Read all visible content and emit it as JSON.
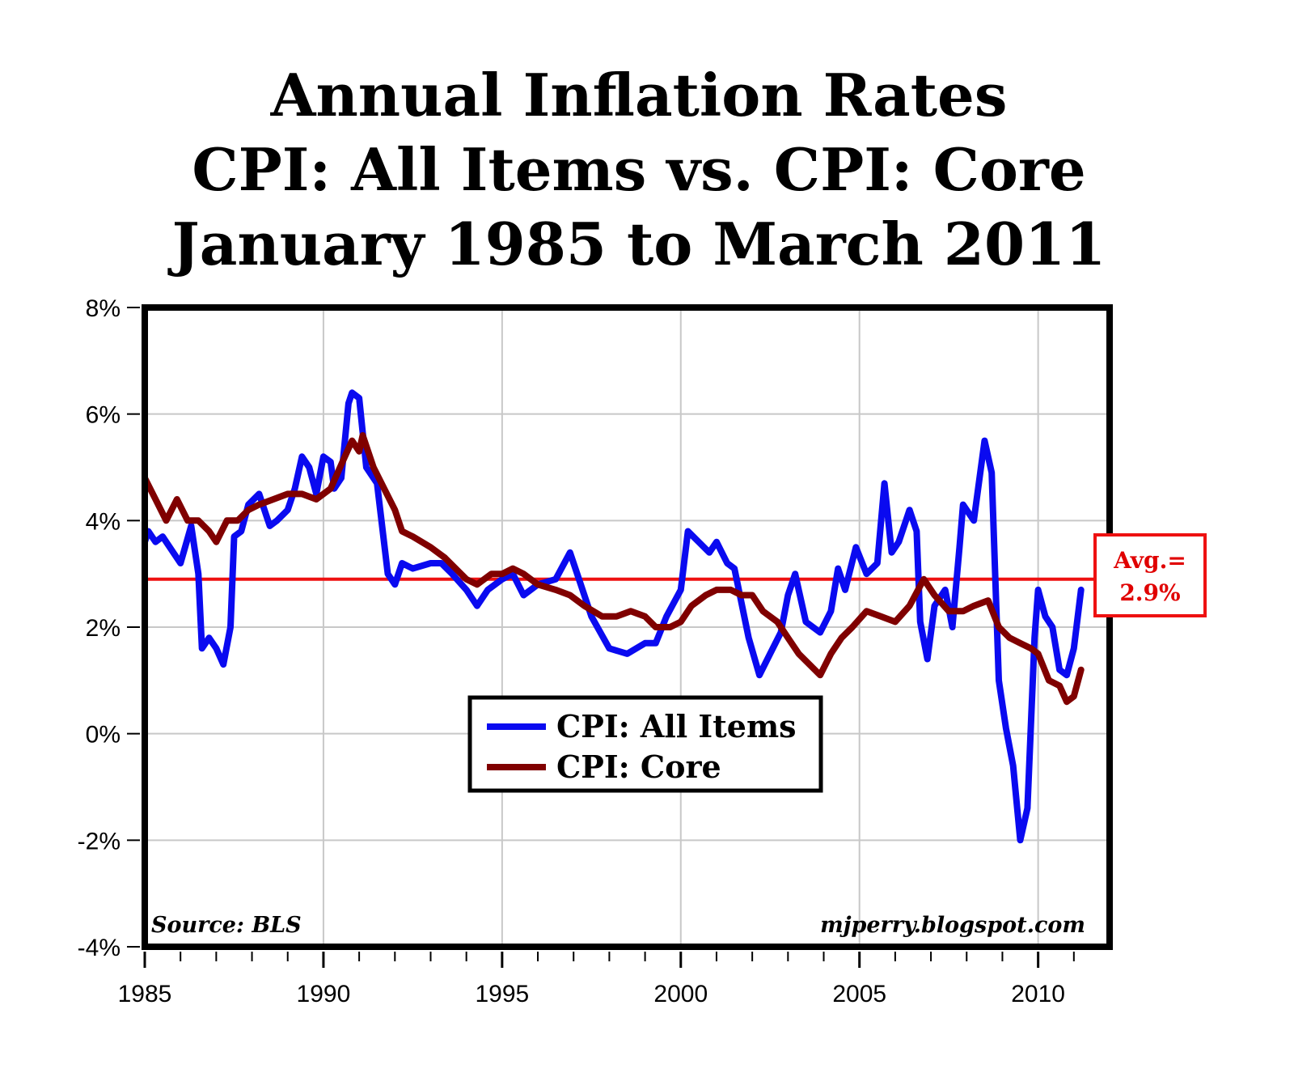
{
  "chart_data": {
    "type": "line",
    "title": [
      "Annual Inflation Rates",
      "CPI: All Items vs. CPI: Core",
      "January 1985 to March 2011"
    ],
    "xlim": [
      1985,
      2012
    ],
    "ylim": [
      -4,
      8
    ],
    "x_ticks": [
      1985,
      1990,
      1995,
      2000,
      2005,
      2010
    ],
    "x_tick_labels": [
      "1985",
      "1990",
      "1995",
      "2000",
      "2005",
      "2010"
    ],
    "y_ticks": [
      -4,
      -2,
      0,
      2,
      4,
      6,
      8
    ],
    "y_tick_labels": [
      "-4%",
      "-2%",
      "0%",
      "2%",
      "4%",
      "6%",
      "8%"
    ],
    "grid": true,
    "legend_placement": "center",
    "average": {
      "value": 2.9,
      "label_line1": "Avg.=",
      "label_line2": "2.9%",
      "color": "#ee1111"
    },
    "source_note": "Source: BLS",
    "credit": "mjperry.blogspot.com",
    "series": [
      {
        "name": "CPI: All Items",
        "color": "#0a0af0",
        "x": [
          1985.0,
          1985.1,
          1985.3,
          1985.5,
          1985.8,
          1986.0,
          1986.3,
          1986.5,
          1986.6,
          1986.8,
          1987.0,
          1987.2,
          1987.4,
          1987.5,
          1987.7,
          1987.9,
          1988.2,
          1988.4,
          1988.5,
          1988.7,
          1989.0,
          1989.2,
          1989.4,
          1989.6,
          1989.8,
          1990.0,
          1990.2,
          1990.3,
          1990.5,
          1990.7,
          1990.8,
          1991.0,
          1991.2,
          1991.5,
          1991.8,
          1992.0,
          1992.2,
          1992.5,
          1993.0,
          1993.3,
          1993.6,
          1994.0,
          1994.3,
          1994.6,
          1995.0,
          1995.3,
          1995.6,
          1996.0,
          1996.5,
          1996.9,
          1997.2,
          1997.5,
          1998.0,
          1998.5,
          1999.0,
          1999.3,
          1999.6,
          2000.0,
          2000.2,
          2000.5,
          2000.8,
          2001.0,
          2001.3,
          2001.5,
          2001.9,
          2002.2,
          2002.5,
          2002.8,
          2003.0,
          2003.2,
          2003.5,
          2003.9,
          2004.2,
          2004.4,
          2004.6,
          2004.9,
          2005.2,
          2005.5,
          2005.7,
          2005.9,
          2006.1,
          2006.4,
          2006.6,
          2006.7,
          2006.9,
          2007.1,
          2007.4,
          2007.6,
          2007.8,
          2007.9,
          2008.2,
          2008.5,
          2008.7,
          2008.9,
          2009.1,
          2009.3,
          2009.5,
          2009.7,
          2009.9,
          2010.0,
          2010.2,
          2010.4,
          2010.6,
          2010.8,
          2011.0,
          2011.2
        ],
        "values": [
          3.6,
          3.8,
          3.6,
          3.7,
          3.4,
          3.2,
          3.9,
          3.0,
          1.6,
          1.8,
          1.6,
          1.3,
          2.0,
          3.7,
          3.8,
          4.3,
          4.5,
          4.1,
          3.9,
          4.0,
          4.2,
          4.6,
          5.2,
          5.0,
          4.5,
          5.2,
          5.1,
          4.6,
          4.8,
          6.2,
          6.4,
          6.3,
          5.0,
          4.7,
          3.0,
          2.8,
          3.2,
          3.1,
          3.2,
          3.2,
          3.0,
          2.7,
          2.4,
          2.7,
          2.9,
          3.0,
          2.6,
          2.8,
          2.9,
          3.4,
          2.8,
          2.2,
          1.6,
          1.5,
          1.7,
          1.7,
          2.2,
          2.7,
          3.8,
          3.6,
          3.4,
          3.6,
          3.2,
          3.1,
          1.8,
          1.1,
          1.5,
          1.9,
          2.6,
          3.0,
          2.1,
          1.9,
          2.3,
          3.1,
          2.7,
          3.5,
          3.0,
          3.2,
          4.7,
          3.4,
          3.6,
          4.2,
          3.8,
          2.1,
          1.4,
          2.4,
          2.7,
          2.0,
          3.5,
          4.3,
          4.0,
          5.5,
          4.9,
          1.0,
          0.1,
          -0.6,
          -2.0,
          -1.4,
          1.8,
          2.7,
          2.2,
          2.0,
          1.2,
          1.1,
          1.6,
          2.7
        ]
      },
      {
        "name": "CPI: Core",
        "color": "#800000",
        "x": [
          1985.0,
          1985.3,
          1985.6,
          1985.9,
          1986.2,
          1986.5,
          1986.8,
          1987.0,
          1987.3,
          1987.6,
          1987.9,
          1988.2,
          1988.6,
          1989.0,
          1989.4,
          1989.8,
          1990.2,
          1990.6,
          1990.8,
          1991.0,
          1991.1,
          1991.4,
          1991.7,
          1992.0,
          1992.2,
          1992.5,
          1993.0,
          1993.4,
          1993.7,
          1994.0,
          1994.3,
          1994.7,
          1995.0,
          1995.3,
          1995.6,
          1996.0,
          1996.5,
          1996.9,
          1997.3,
          1997.8,
          1998.2,
          1998.6,
          1999.0,
          1999.3,
          1999.7,
          2000.0,
          2000.3,
          2000.7,
          2001.0,
          2001.4,
          2001.7,
          2002.0,
          2002.3,
          2002.7,
          2003.0,
          2003.3,
          2003.6,
          2003.9,
          2004.2,
          2004.5,
          2004.8,
          2005.2,
          2005.6,
          2006.0,
          2006.4,
          2006.8,
          2007.1,
          2007.5,
          2007.9,
          2008.2,
          2008.6,
          2008.9,
          2009.2,
          2009.5,
          2009.8,
          2010.0,
          2010.3,
          2010.6,
          2010.8,
          2011.0,
          2011.2
        ],
        "values": [
          4.8,
          4.4,
          4.0,
          4.4,
          4.0,
          4.0,
          3.8,
          3.6,
          4.0,
          4.0,
          4.2,
          4.3,
          4.4,
          4.5,
          4.5,
          4.4,
          4.6,
          5.2,
          5.5,
          5.3,
          5.6,
          5.0,
          4.6,
          4.2,
          3.8,
          3.7,
          3.5,
          3.3,
          3.1,
          2.9,
          2.8,
          3.0,
          3.0,
          3.1,
          3.0,
          2.8,
          2.7,
          2.6,
          2.4,
          2.2,
          2.2,
          2.3,
          2.2,
          2.0,
          2.0,
          2.1,
          2.4,
          2.6,
          2.7,
          2.7,
          2.6,
          2.6,
          2.3,
          2.1,
          1.8,
          1.5,
          1.3,
          1.1,
          1.5,
          1.8,
          2.0,
          2.3,
          2.2,
          2.1,
          2.4,
          2.9,
          2.6,
          2.3,
          2.3,
          2.4,
          2.5,
          2.0,
          1.8,
          1.7,
          1.6,
          1.5,
          1.0,
          0.9,
          0.6,
          0.7,
          1.2
        ]
      }
    ]
  }
}
